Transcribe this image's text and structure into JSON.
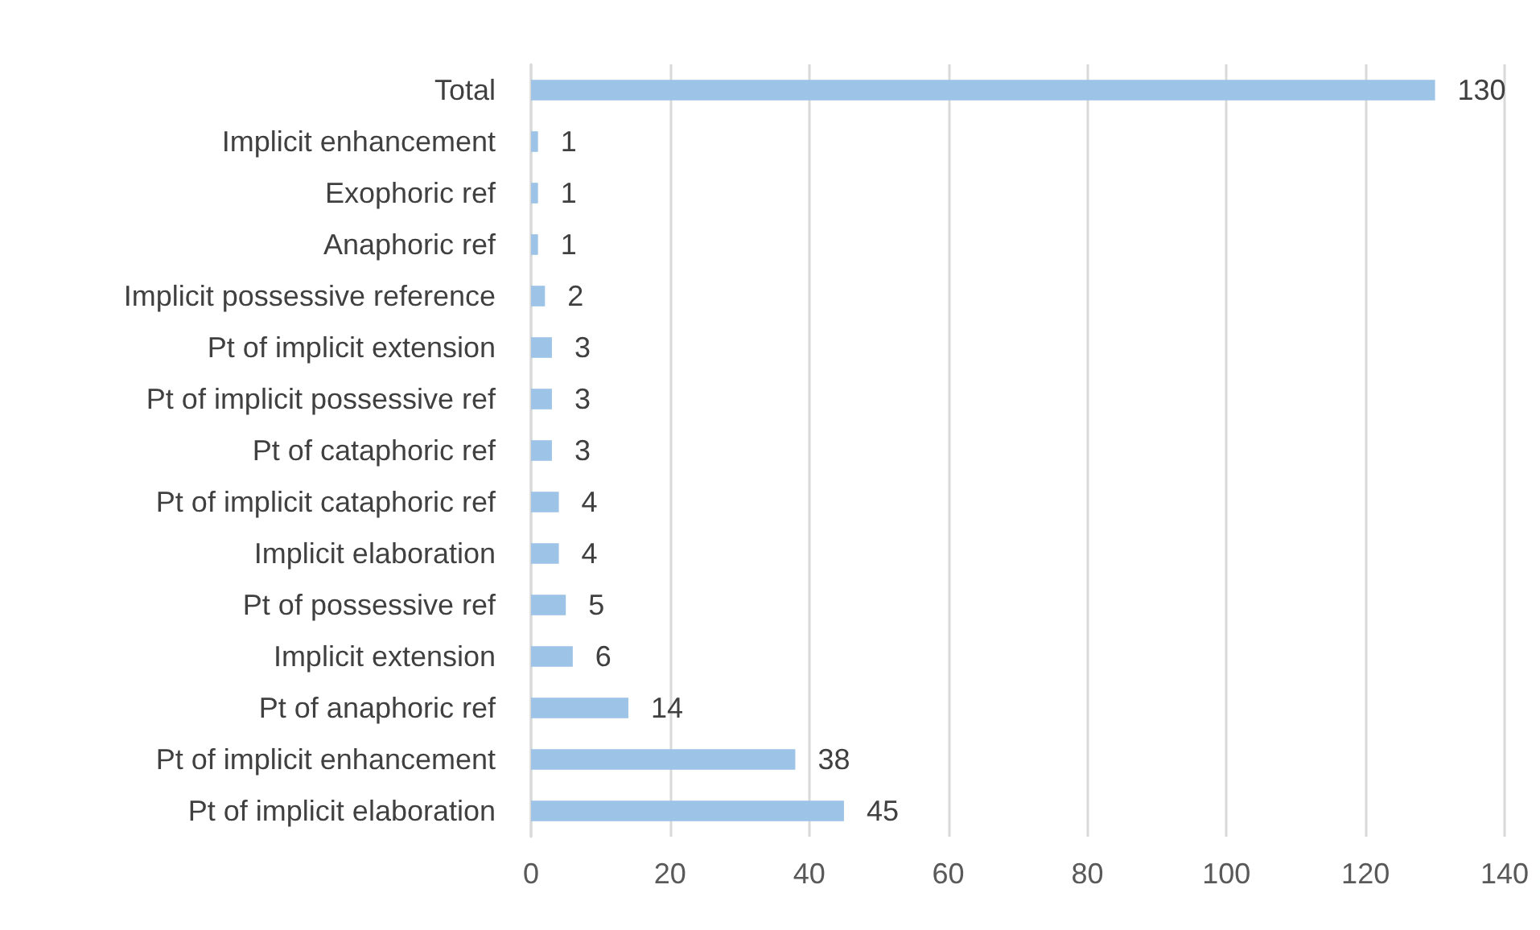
{
  "chart_data": {
    "type": "bar",
    "orientation": "horizontal",
    "categories": [
      "Total",
      "Implicit enhancement",
      "Exophoric ref",
      "Anaphoric ref",
      "Implicit possessive reference",
      "Pt of implicit extension",
      "Pt of implicit possessive ref",
      "Pt of cataphoric ref",
      "Pt of implicit cataphoric ref",
      "Implicit elaboration",
      "Pt of possessive ref",
      "Implicit extension",
      "Pt of anaphoric ref",
      "Pt of implicit enhancement",
      "Pt of implicit elaboration"
    ],
    "values": [
      130,
      1,
      1,
      1,
      2,
      3,
      3,
      3,
      4,
      4,
      5,
      6,
      14,
      38,
      45
    ],
    "color": "#9dc3e6",
    "data_labels": true,
    "xlim": [
      0,
      140
    ],
    "xticks": [
      0,
      20,
      40,
      60,
      80,
      100,
      120,
      140
    ],
    "grid": "x"
  }
}
